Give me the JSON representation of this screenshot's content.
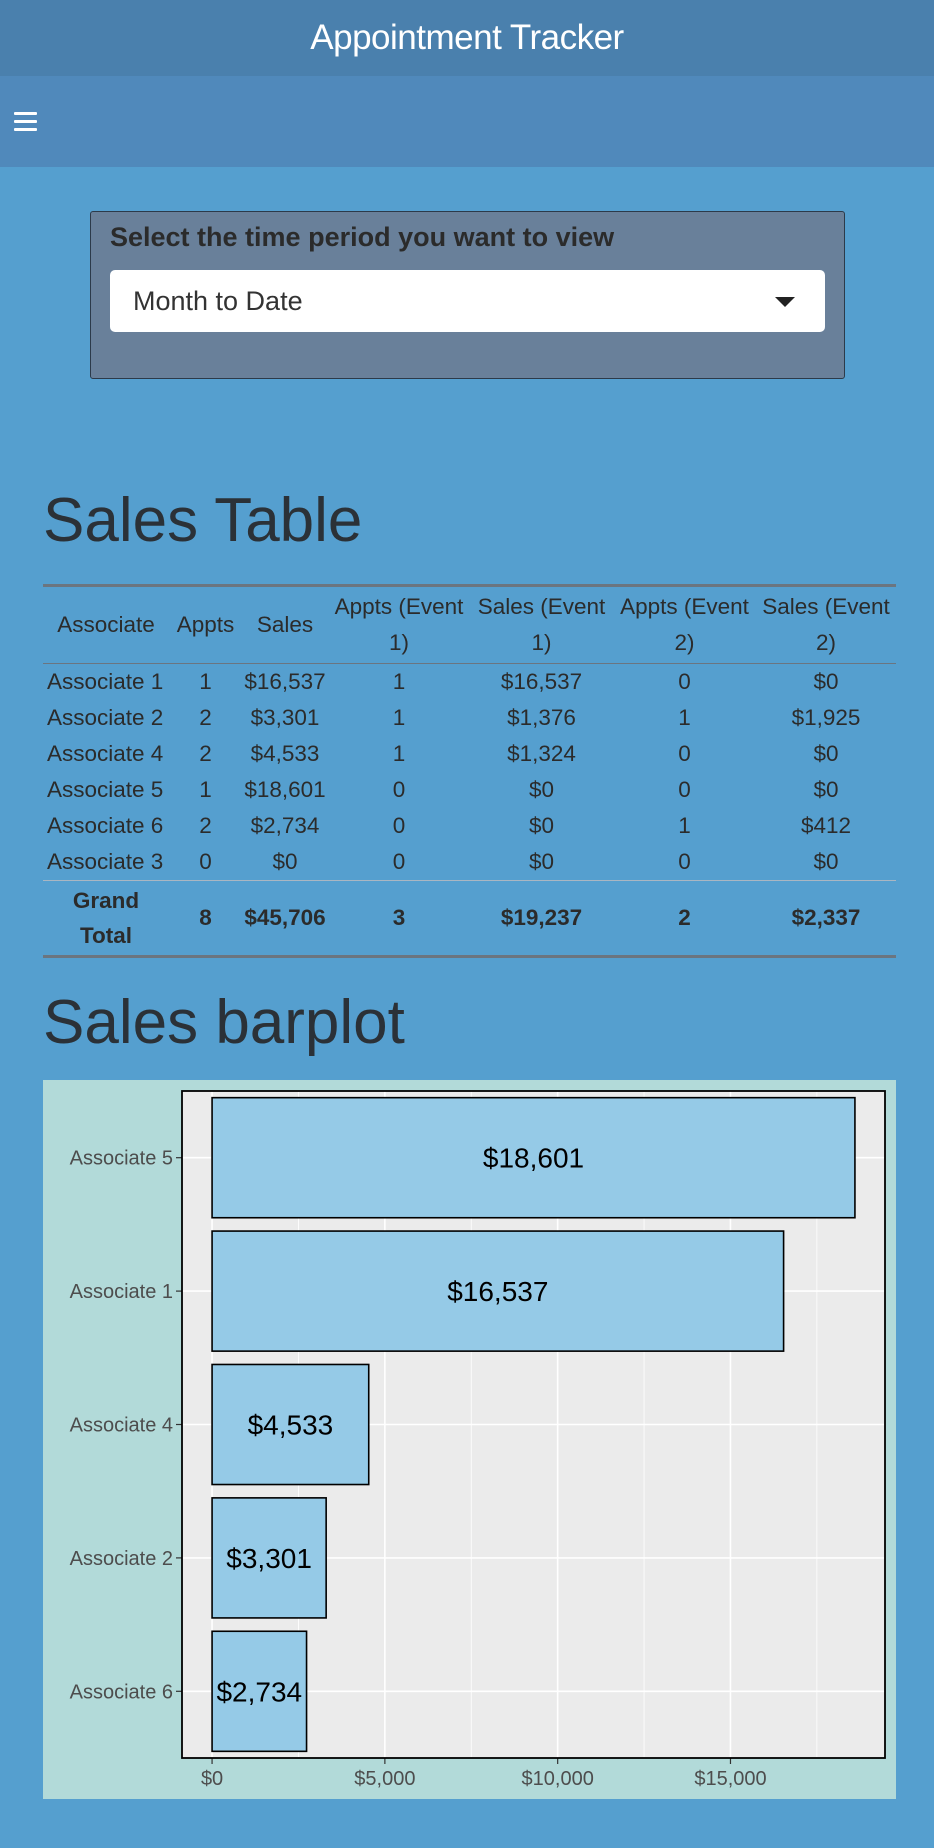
{
  "app": {
    "title": "Appointment Tracker"
  },
  "filter": {
    "label": "Select the time period you want to view",
    "selected": "Month to Date"
  },
  "table_section": {
    "title": "Sales Table",
    "headers": [
      "Associate",
      "Appts",
      "Sales",
      "Appts (Event 1)",
      "Sales (Event 1)",
      "Appts (Event 2)",
      "Sales (Event 2)"
    ],
    "rows": [
      [
        "Associate 1",
        "1",
        "$16,537",
        "1",
        "$16,537",
        "0",
        "$0"
      ],
      [
        "Associate 2",
        "2",
        "$3,301",
        "1",
        "$1,376",
        "1",
        "$1,925"
      ],
      [
        "Associate 4",
        "2",
        "$4,533",
        "1",
        "$1,324",
        "0",
        "$0"
      ],
      [
        "Associate 5",
        "1",
        "$18,601",
        "0",
        "$0",
        "0",
        "$0"
      ],
      [
        "Associate 6",
        "2",
        "$2,734",
        "0",
        "$0",
        "1",
        "$412"
      ],
      [
        "Associate 3",
        "0",
        "$0",
        "0",
        "$0",
        "0",
        "$0"
      ]
    ],
    "total": [
      "Grand Total",
      "8",
      "$45,706",
      "3",
      "$19,237",
      "2",
      "$2,337"
    ]
  },
  "chart_section": {
    "title": "Sales barplot"
  },
  "chart_data": {
    "type": "bar",
    "orientation": "horizontal",
    "categories": [
      "Associate 5",
      "Associate 1",
      "Associate 4",
      "Associate 2",
      "Associate 6"
    ],
    "values": [
      18601,
      16537,
      4533,
      3301,
      2734
    ],
    "data_labels": [
      "$18,601",
      "$16,537",
      "$4,533",
      "$3,301",
      "$2,734"
    ],
    "x_ticks": [
      0,
      5000,
      10000,
      15000
    ],
    "x_tick_labels": [
      "$0",
      "$5,000",
      "$10,000",
      "$15,000"
    ],
    "xlim": [
      -870,
      19471
    ],
    "grid": true,
    "colors": {
      "bar": "#95cae7",
      "panel": "#ebebeb",
      "background": "#b2dad9"
    }
  }
}
